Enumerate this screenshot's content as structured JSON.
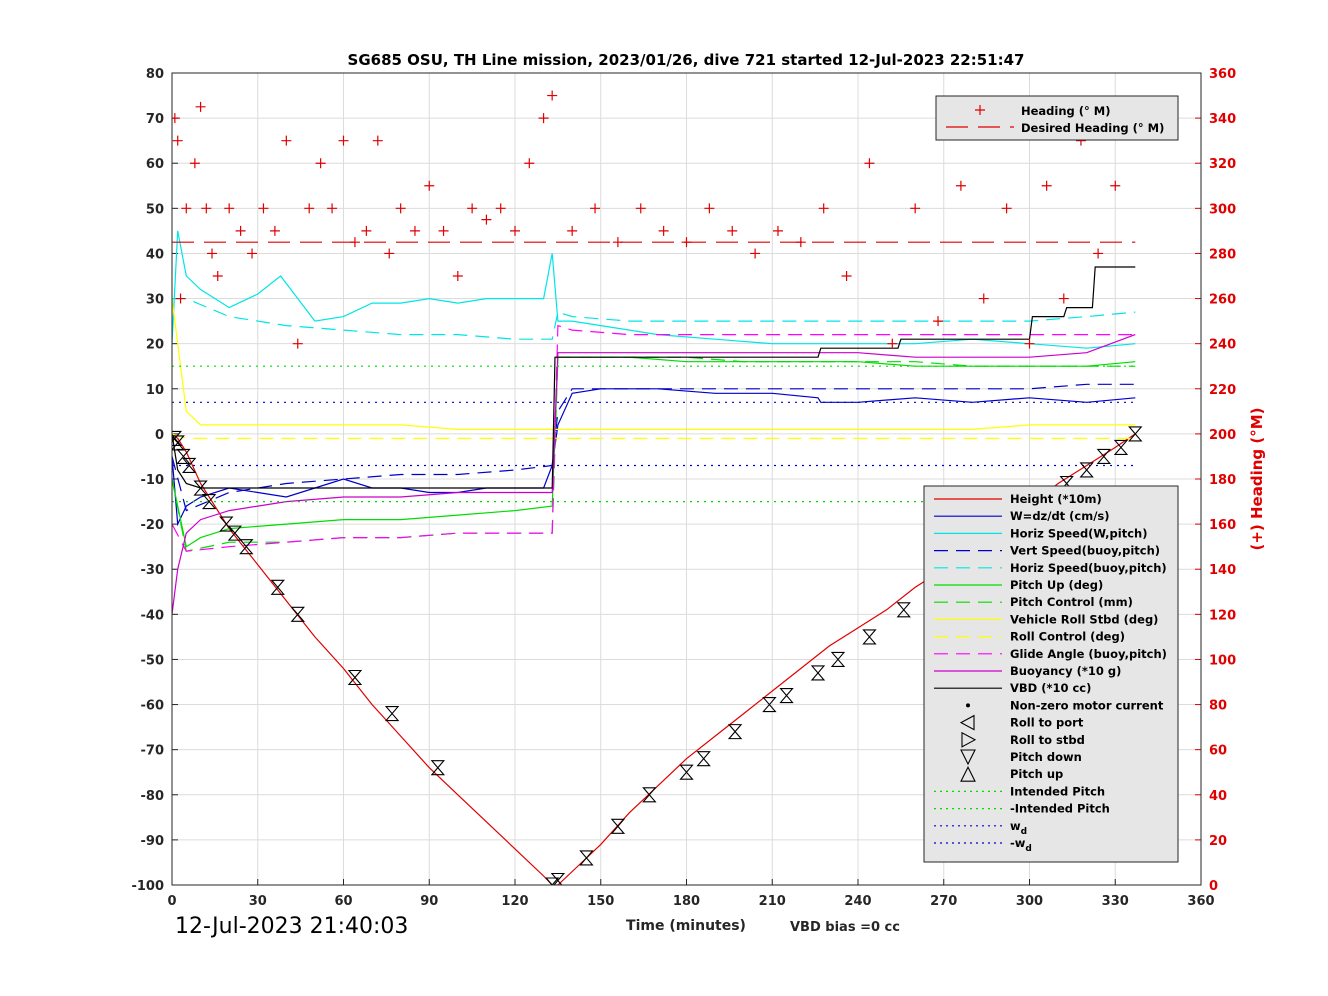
{
  "chart_data": {
    "type": "line",
    "title": "SG685 OSU, TH Line mission, 2023/01/26, dive 721 started 12-Jul-2023 22:51:47",
    "xlabel": "Time (minutes)",
    "ylabel_right": "(+) Heading (°M)",
    "xlim": [
      0,
      360
    ],
    "ylim": [
      -100,
      80
    ],
    "ylim_right": [
      0,
      360
    ],
    "x_ticks": [
      "0",
      "30",
      "60",
      "90",
      "120",
      "150",
      "180",
      "210",
      "240",
      "270",
      "300",
      "330",
      "360"
    ],
    "y_ticks": [
      "80",
      "70",
      "60",
      "50",
      "40",
      "30",
      "20",
      "10",
      "0",
      "-10",
      "-20",
      "-30",
      "-40",
      "-50",
      "-60",
      "-70",
      "-80",
      "-90",
      "-100"
    ],
    "y_ticks_right": [
      "360",
      "340",
      "320",
      "300",
      "280",
      "260",
      "240",
      "220",
      "200",
      "180",
      "160",
      "140",
      "120",
      "100",
      "80",
      "60",
      "40",
      "20",
      "0"
    ],
    "grid": true,
    "start_time": "12-Jul-2023 21:40:03",
    "vbd_bias": "VBD bias =0 cc",
    "legend_top": [
      {
        "name": "Heading (° M)",
        "color": "#e00000"
      },
      {
        "name": "Desired Heading (° M)",
        "color": "#e00000"
      }
    ],
    "legend": [
      {
        "name": "Height (*10m)",
        "color": "#e00000",
        "style": "solid"
      },
      {
        "name": "W=dz/dt (cm/s)",
        "color": "#0000cc",
        "style": "solid"
      },
      {
        "name": "Horiz Speed(W,pitch)",
        "color": "#00e5e5",
        "style": "solid"
      },
      {
        "name": "Vert Speed(buoy,pitch)",
        "color": "#0000cc",
        "style": "dashed"
      },
      {
        "name": "Horiz Speed(buoy,pitch)",
        "color": "#00e5e5",
        "style": "dashed"
      },
      {
        "name": "Pitch Up (deg)",
        "color": "#00dd00",
        "style": "solid"
      },
      {
        "name": "Pitch Control (mm)",
        "color": "#00dd00",
        "style": "dashed"
      },
      {
        "name": "Vehicle Roll Stbd (deg)",
        "color": "#ffff00",
        "style": "solid"
      },
      {
        "name": "Roll Control (deg)",
        "color": "#ffff00",
        "style": "dashed"
      },
      {
        "name": "Glide Angle (buoy,pitch)",
        "color": "#ff00ff",
        "style": "dashed"
      },
      {
        "name": "Buoyancy (*10 g)",
        "color": "#cc00cc",
        "style": "solid"
      },
      {
        "name": "VBD (*10 cc)",
        "color": "#000000",
        "style": "solid"
      },
      {
        "name": "Non-zero motor current",
        "color": "#000000",
        "style": "dot"
      },
      {
        "name": "Roll to port",
        "color": "#000000",
        "style": "tri-left"
      },
      {
        "name": "Roll to stbd",
        "color": "#000000",
        "style": "tri-right"
      },
      {
        "name": "Pitch down",
        "color": "#000000",
        "style": "tri-down"
      },
      {
        "name": "Pitch up",
        "color": "#000000",
        "style": "tri-up"
      },
      {
        "name": "Intended Pitch",
        "color": "#00dd00",
        "style": "dotted"
      },
      {
        "name": "-Intended Pitch",
        "color": "#00dd00",
        "style": "dotted"
      },
      {
        "name": "w_d",
        "color": "#0000cc",
        "style": "dotted"
      },
      {
        "name": "-w_d",
        "color": "#0000cc",
        "style": "dotted"
      }
    ],
    "series": [
      {
        "name": "Height (*10m)",
        "x": [
          0,
          2,
          5,
          10,
          15,
          20,
          25,
          30,
          40,
          50,
          60,
          70,
          80,
          90,
          100,
          110,
          120,
          130,
          133,
          135,
          140,
          150,
          160,
          170,
          180,
          190,
          200,
          210,
          220,
          230,
          240,
          250,
          260,
          270,
          280,
          290,
          300,
          310,
          320,
          330,
          337
        ],
        "y": [
          0,
          -1,
          -4,
          -11,
          -16,
          -21,
          -25,
          -29,
          -37,
          -45,
          -52,
          -60,
          -67,
          -74,
          -80,
          -86,
          -92,
          -98,
          -100,
          -100,
          -97,
          -91,
          -84,
          -78,
          -72,
          -67,
          -62,
          -57,
          -52,
          -47,
          -43,
          -39,
          -34,
          -30,
          -26,
          -21,
          -16,
          -11,
          -7,
          -3,
          0
        ]
      },
      {
        "name": "W=dz/dt (cm/s)",
        "x": [
          0,
          2,
          5,
          10,
          20,
          30,
          40,
          50,
          60,
          70,
          80,
          90,
          100,
          110,
          120,
          130,
          133,
          135,
          140,
          150,
          170,
          190,
          210,
          226,
          227,
          240,
          260,
          280,
          300,
          320,
          337
        ],
        "y": [
          -5,
          -20,
          -16,
          -14,
          -12,
          -13,
          -14,
          -12,
          -10,
          -12,
          -12,
          -13,
          -13,
          -12,
          -12,
          -12,
          -7,
          2,
          9,
          10,
          10,
          9,
          9,
          8,
          7,
          7,
          8,
          7,
          8,
          7,
          8
        ]
      },
      {
        "name": "Horiz Speed(W,pitch)",
        "x": [
          0,
          2,
          5,
          10,
          20,
          30,
          38,
          44,
          50,
          60,
          70,
          80,
          90,
          100,
          110,
          120,
          130,
          133,
          135,
          140,
          150,
          170,
          190,
          210,
          226,
          240,
          260,
          280,
          300,
          320,
          337
        ],
        "y": [
          20,
          45,
          35,
          32,
          28,
          31,
          35,
          30,
          25,
          26,
          29,
          29,
          30,
          29,
          30,
          30,
          30,
          40,
          25,
          25,
          24,
          22,
          21,
          20,
          20,
          20,
          20,
          21,
          20,
          19,
          20
        ]
      },
      {
        "name": "Vert Speed(buoy,pitch)",
        "x": [
          0,
          5,
          20,
          40,
          60,
          80,
          100,
          120,
          133,
          135,
          140,
          160,
          180,
          200,
          220,
          240,
          260,
          280,
          300,
          320,
          337
        ],
        "y": [
          -5,
          -17,
          -13,
          -11,
          -10,
          -9,
          -9,
          -8,
          -7,
          5,
          10,
          10,
          10,
          10,
          10,
          10,
          10,
          10,
          10,
          11,
          11
        ]
      },
      {
        "name": "Horiz Speed(buoy,pitch)",
        "x": [
          0,
          5,
          20,
          40,
          60,
          80,
          100,
          120,
          133,
          135,
          140,
          160,
          180,
          200,
          220,
          240,
          260,
          280,
          300,
          320,
          337
        ],
        "y": [
          30,
          30,
          26,
          24,
          23,
          22,
          22,
          21,
          21,
          27,
          26,
          25,
          25,
          25,
          25,
          25,
          25,
          25,
          25,
          26,
          27
        ]
      },
      {
        "name": "Pitch Up (deg)",
        "x": [
          0,
          5,
          10,
          20,
          40,
          60,
          80,
          100,
          120,
          133,
          135,
          140,
          160,
          180,
          200,
          220,
          240,
          260,
          280,
          300,
          320,
          337
        ],
        "y": [
          -10,
          -25,
          -23,
          -21,
          -20,
          -19,
          -19,
          -18,
          -17,
          -16,
          17,
          17,
          17,
          16,
          16,
          16,
          16,
          15,
          15,
          15,
          15,
          16
        ]
      },
      {
        "name": "Pitch Control (mm)",
        "x": [
          0,
          5,
          20,
          40,
          60,
          80,
          100,
          120,
          133,
          135,
          140,
          160,
          180,
          200,
          220,
          240,
          260,
          280,
          300,
          320,
          337
        ],
        "y": [
          -10,
          -26,
          -24,
          -24,
          -23,
          -23,
          -22,
          -22,
          -22,
          17,
          17,
          17,
          17,
          16,
          16,
          16,
          16,
          15,
          15,
          15,
          15
        ]
      },
      {
        "name": "Vehicle Roll Stbd (deg)",
        "x": [
          0,
          5,
          10,
          20,
          40,
          60,
          80,
          100,
          120,
          133,
          135,
          140,
          160,
          180,
          200,
          220,
          240,
          260,
          280,
          300,
          320,
          337
        ],
        "y": [
          30,
          5,
          2,
          2,
          2,
          2,
          2,
          1,
          1,
          1,
          1,
          1,
          1,
          1,
          1,
          1,
          1,
          1,
          1,
          2,
          2,
          2
        ]
      },
      {
        "name": "Roll Control (deg)",
        "x": [
          0,
          5,
          20,
          40,
          60,
          80,
          100,
          120,
          133,
          135,
          140,
          160,
          180,
          200,
          220,
          240,
          260,
          280,
          300,
          320,
          337
        ],
        "y": [
          0,
          -1,
          -1,
          -1,
          -1,
          -1,
          -1,
          -1,
          -1,
          -1,
          -1,
          -1,
          -1,
          -1,
          -1,
          -1,
          -1,
          -1,
          -1,
          -1,
          -1
        ]
      },
      {
        "name": "Glide Angle (buoy,pitch)",
        "x": [
          0,
          5,
          20,
          40,
          60,
          80,
          100,
          120,
          133,
          135,
          140,
          160,
          180,
          200,
          220,
          240,
          260,
          280,
          300,
          320,
          337
        ],
        "y": [
          -20,
          -26,
          -25,
          -24,
          -23,
          -23,
          -22,
          -22,
          -22,
          24,
          23,
          22,
          22,
          22,
          22,
          22,
          22,
          22,
          22,
          22,
          22
        ]
      },
      {
        "name": "Buoyancy (*10 g)",
        "x": [
          0,
          2,
          5,
          10,
          20,
          30,
          40,
          60,
          80,
          100,
          120,
          133,
          135,
          140,
          160,
          180,
          200,
          220,
          240,
          260,
          280,
          300,
          320,
          337
        ],
        "y": [
          -40,
          -30,
          -22,
          -19,
          -17,
          -16,
          -15,
          -14,
          -14,
          -13,
          -13,
          -13,
          18,
          18,
          18,
          18,
          18,
          18,
          18,
          17,
          17,
          17,
          18,
          22
        ]
      },
      {
        "name": "VBD (*10 cc)",
        "x": [
          0,
          2,
          5,
          10,
          20,
          40,
          60,
          80,
          100,
          120,
          133,
          134,
          140,
          160,
          180,
          200,
          226,
          227,
          254,
          255,
          300,
          301,
          312,
          313,
          322,
          323,
          337
        ],
        "y": [
          0,
          -8,
          -11,
          -12,
          -12,
          -12,
          -12,
          -12,
          -12,
          -12,
          -12,
          17,
          17,
          17,
          17,
          17,
          17,
          19,
          19,
          21,
          21,
          26,
          26,
          28,
          28,
          37,
          37
        ]
      },
      {
        "name": "Intended Pitch",
        "x": [
          0,
          337
        ],
        "y": [
          15,
          15
        ]
      },
      {
        "name": "-Intended Pitch",
        "x": [
          0,
          337
        ],
        "y": [
          -15,
          -15
        ]
      },
      {
        "name": "w_d",
        "x": [
          0,
          337
        ],
        "y": [
          7,
          7
        ]
      },
      {
        "name": "-w_d",
        "x": [
          0,
          337
        ],
        "y": [
          -7,
          -7
        ]
      },
      {
        "name": "Desired Heading (° M)",
        "axis": "right",
        "x": [
          0,
          337
        ],
        "y": [
          285,
          285
        ]
      }
    ],
    "heading_points": {
      "x": [
        1,
        2,
        3,
        5,
        8,
        10,
        12,
        14,
        16,
        20,
        24,
        28,
        32,
        36,
        40,
        44,
        48,
        52,
        56,
        60,
        64,
        68,
        72,
        76,
        80,
        85,
        90,
        95,
        100,
        105,
        110,
        115,
        120,
        125,
        130,
        133,
        140,
        148,
        156,
        164,
        172,
        180,
        188,
        196,
        204,
        212,
        220,
        228,
        236,
        244,
        252,
        260,
        268,
        276,
        284,
        292,
        300,
        306,
        312,
        318,
        324,
        330,
        336
      ],
      "y": [
        340,
        330,
        260,
        300,
        320,
        345,
        300,
        280,
        270,
        300,
        290,
        280,
        300,
        290,
        330,
        240,
        300,
        320,
        300,
        330,
        285,
        290,
        330,
        280,
        300,
        290,
        310,
        290,
        270,
        300,
        295,
        300,
        290,
        320,
        340,
        350,
        290,
        300,
        285,
        300,
        290,
        285,
        300,
        290,
        280,
        290,
        285,
        300,
        270,
        320,
        240,
        300,
        250,
        310,
        260,
        300,
        240,
        310,
        260,
        330,
        280,
        310,
        340
      ]
    },
    "pitch_markers": {
      "x": [
        1,
        2,
        4,
        6,
        10,
        13,
        19,
        22,
        26,
        37,
        44,
        64,
        77,
        93,
        133,
        135,
        145,
        156,
        167,
        180,
        186,
        197,
        209,
        215,
        226,
        233,
        244,
        256,
        267,
        273,
        286,
        292,
        300,
        306,
        313,
        320,
        326,
        332,
        337
      ],
      "y": [
        -1,
        -2,
        -5,
        -7,
        -12,
        -15,
        -20,
        -22,
        -25,
        -34,
        -40,
        -54,
        -62,
        -74,
        -100,
        -99,
        -94,
        -87,
        -80,
        -75,
        -72,
        -66,
        -60,
        -58,
        -53,
        -50,
        -45,
        -39,
        -34,
        -31,
        -24,
        -21,
        -17,
        -14,
        -11,
        -8,
        -5,
        -3,
        0
      ]
    }
  }
}
